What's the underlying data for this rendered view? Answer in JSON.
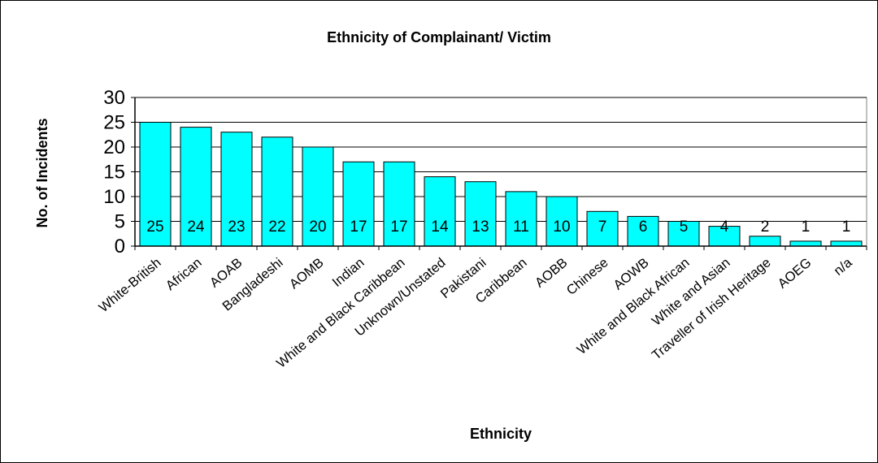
{
  "chart_data": {
    "type": "bar",
    "title": "Ethnicity of Complainant/ Victim",
    "xlabel": "Ethnicity",
    "ylabel": "No. of Incidents",
    "ylim": [
      0,
      30
    ],
    "yticks": [
      "0",
      "5",
      "10",
      "15",
      "20",
      "25",
      "30"
    ],
    "grid": true,
    "legend": "none",
    "bar_color": "#00ffff",
    "categories": [
      "White-British",
      "African",
      "AOAB",
      "Bangladeshi",
      "AOMB",
      "Indian",
      "White and Black Caribbean",
      "Unknown/Unstated",
      "Pakistani",
      "Caribbean",
      "AOBB",
      "Chinese",
      "AOWB",
      "White and Black African",
      "White and Asian",
      "Traveller of Irish Heritage",
      "AOEG",
      "n/a"
    ],
    "values": [
      25,
      24,
      23,
      22,
      20,
      17,
      17,
      14,
      13,
      11,
      10,
      7,
      6,
      5,
      4,
      2,
      1,
      1
    ],
    "data_labels": [
      "25",
      "24",
      "23",
      "22",
      "20",
      "17",
      "17",
      "14",
      "13",
      "11",
      "10",
      "7",
      "6",
      "5",
      "4",
      "2",
      "1",
      "1"
    ]
  }
}
